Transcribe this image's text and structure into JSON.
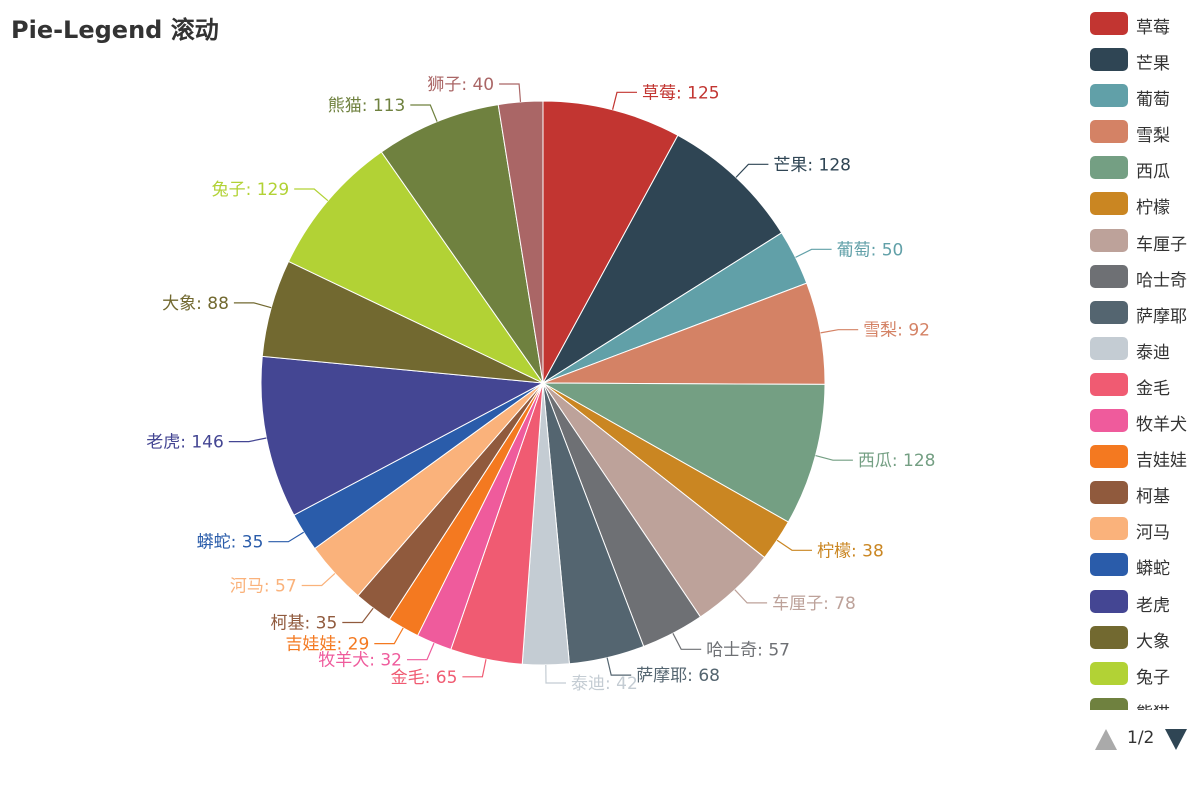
{
  "chart_data": {
    "type": "pie",
    "title": "Pie-Legend 滚动",
    "series": [
      {
        "name": "草莓",
        "value": 125,
        "color": "#c23531"
      },
      {
        "name": "芒果",
        "value": 128,
        "color": "#2f4554"
      },
      {
        "name": "葡萄",
        "value": 50,
        "color": "#61a0a8"
      },
      {
        "name": "雪梨",
        "value": 92,
        "color": "#d48265"
      },
      {
        "name": "西瓜",
        "value": 128,
        "color": "#749f83"
      },
      {
        "name": "柠檬",
        "value": 38,
        "color": "#ca8622"
      },
      {
        "name": "车厘子",
        "value": 78,
        "color": "#bda29a"
      },
      {
        "name": "哈士奇",
        "value": 57,
        "color": "#6e7074"
      },
      {
        "name": "萨摩耶",
        "value": 68,
        "color": "#546570"
      },
      {
        "name": "泰迪",
        "value": 42,
        "color": "#c4ccd3"
      },
      {
        "name": "金毛",
        "value": 65,
        "color": "#f05b72"
      },
      {
        "name": "牧羊犬",
        "value": 32,
        "color": "#ef5b9c"
      },
      {
        "name": "吉娃娃",
        "value": 29,
        "color": "#f47920"
      },
      {
        "name": "柯基",
        "value": 35,
        "color": "#905a3d"
      },
      {
        "name": "河马",
        "value": 57,
        "color": "#fab27b"
      },
      {
        "name": "蟒蛇",
        "value": 35,
        "color": "#2a5caa"
      },
      {
        "name": "老虎",
        "value": 146,
        "color": "#444693"
      },
      {
        "name": "大象",
        "value": 88,
        "color": "#726930"
      },
      {
        "name": "兔子",
        "value": 129,
        "color": "#b2d235"
      },
      {
        "name": "熊猫",
        "value": 113,
        "color": "#6f813f"
      },
      {
        "name": "狮子",
        "value": 40,
        "color": "#aa6666"
      }
    ],
    "legend": {
      "position": "right",
      "scrollable": true
    }
  },
  "legend_pager": {
    "page_text": "1/2"
  }
}
